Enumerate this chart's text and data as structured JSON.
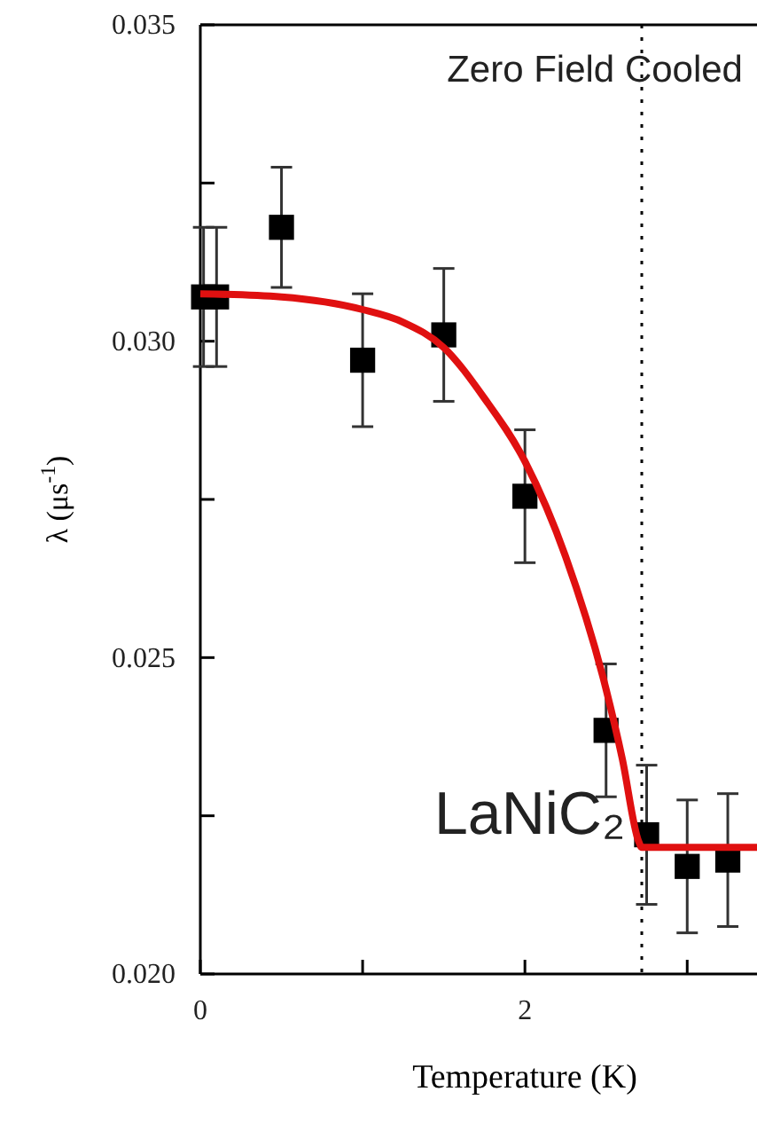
{
  "chart_data": {
    "type": "scatter",
    "xlabel": "Temperature (K)",
    "ylabel": "λ (μs$^{-1}$)",
    "xlim": [
      0,
      3.43
    ],
    "ylim": [
      0.02,
      0.035
    ],
    "xticks": [
      0,
      {
        "value": 1,
        "label": null
      },
      2,
      {
        "value": 3,
        "label": null
      }
    ],
    "yticks": [
      {
        "value": 0.02,
        "label": "0.020"
      },
      {
        "value": 0.0225,
        "label": null
      },
      0.025,
      {
        "value": 0.0275,
        "label": null
      },
      {
        "value": 0.03,
        "label": "0.030"
      },
      {
        "value": 0.0325,
        "label": null
      },
      0.035
    ],
    "marker": "square",
    "grid": false,
    "series": [
      {
        "color": "#000000",
        "x": [
          0.02,
          0.1,
          0.5,
          1.0,
          1.5,
          2.0,
          2.5,
          2.75,
          3.0,
          3.25
        ],
        "values": [
          0.0307,
          0.0307,
          0.0318,
          0.0297,
          0.0301,
          0.02755,
          0.02385,
          0.0222,
          0.0217,
          0.0218
        ],
        "errors": [
          0.0011,
          0.0011,
          0.00095,
          0.00105,
          0.00105,
          0.00105,
          0.00105,
          0.0011,
          0.00105,
          0.00105
        ]
      },
      {
        "type": "line",
        "color": "#e01010",
        "marker": "none",
        "x": [
          0,
          0.5,
          1.0,
          1.25,
          1.5,
          1.75,
          2.0,
          2.25,
          2.5,
          2.6,
          2.7,
          2.72,
          3.43
        ],
        "values": [
          0.03075,
          0.0307,
          0.0305,
          0.0303,
          0.0299,
          0.0291,
          0.0281,
          0.0266,
          0.0245,
          0.0234,
          0.0221,
          0.022,
          0.022
        ]
      }
    ],
    "ref_lines": [
      {
        "axis": "x",
        "value": 2.72,
        "line_style": "dotted",
        "color": "#000000"
      }
    ],
    "annotations": [
      "Zero Field Cooled",
      "LaNiC₂"
    ]
  }
}
